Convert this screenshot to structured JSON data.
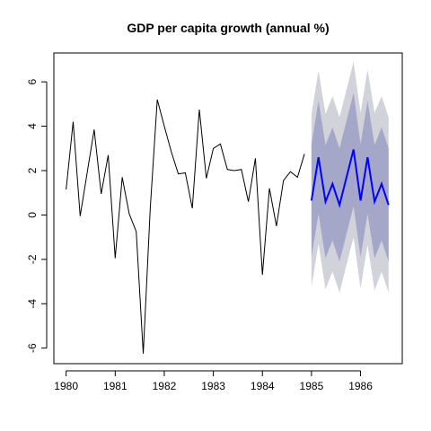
{
  "chart_data": {
    "type": "line",
    "title": "GDP per capita growth (annual %)",
    "xlabel": "",
    "ylabel": "",
    "xlim": [
      1979.75,
      1986.85
    ],
    "ylim": [
      -6.7,
      7.3
    ],
    "x_ticks": [
      1980,
      1981,
      1982,
      1983,
      1984,
      1985,
      1986
    ],
    "x_tick_labels": [
      "1980",
      "1981",
      "1982",
      "1983",
      "1984",
      "1985",
      "1986"
    ],
    "y_ticks": [
      -6,
      -4,
      -2,
      0,
      2,
      4,
      6
    ],
    "y_tick_labels": [
      "-6",
      "-4",
      "-2",
      "0",
      "2",
      "4",
      "6"
    ],
    "grid": false,
    "series": [
      {
        "role": "observed",
        "color": "#000000",
        "x": [
          1980.0,
          1980.1429,
          1980.2857,
          1980.4286,
          1980.5714,
          1980.7143,
          1980.8571,
          1981.0,
          1981.1429,
          1981.2857,
          1981.4286,
          1981.5714,
          1981.7143,
          1981.8571,
          1982.0,
          1982.1429,
          1982.2857,
          1982.4286,
          1982.5714,
          1982.7143,
          1982.8571,
          1983.0,
          1983.1429,
          1983.2857,
          1983.4286,
          1983.5714,
          1983.7143,
          1983.8571,
          1984.0,
          1984.1429,
          1984.2857,
          1984.4286,
          1984.5714,
          1984.7143,
          1984.8571
        ],
        "values": [
          1.15,
          4.2,
          -0.05,
          1.9,
          3.85,
          0.95,
          2.7,
          -1.95,
          1.7,
          0.05,
          -0.75,
          -6.25,
          0.3,
          5.2,
          4.0,
          2.85,
          1.85,
          1.9,
          0.3,
          4.75,
          1.65,
          3.0,
          3.2,
          2.05,
          2.0,
          2.05,
          0.6,
          2.55,
          -2.7,
          1.2,
          -0.5,
          1.55,
          1.95,
          1.7,
          2.75
        ]
      },
      {
        "role": "forecast",
        "color": "#0000ff",
        "x": [
          1985.0,
          1985.1429,
          1985.2857,
          1985.4286,
          1985.5714,
          1985.7143,
          1985.8571,
          1986.0,
          1986.1429,
          1986.2857,
          1986.4286,
          1986.5714
        ],
        "values": [
          0.65,
          2.6,
          0.6,
          1.4,
          0.45,
          1.7,
          2.95,
          0.65,
          2.6,
          0.6,
          1.4,
          0.45
        ]
      }
    ],
    "bands": [
      {
        "level": "95",
        "color": "#d2d2da",
        "lower": [
          -3.25,
          -1.3,
          -3.35,
          -2.55,
          -3.5,
          -2.25,
          -1.0,
          -3.3,
          -1.35,
          -3.4,
          -2.55,
          -3.5
        ],
        "upper": [
          4.55,
          6.5,
          4.55,
          5.35,
          4.4,
          5.65,
          6.9,
          4.6,
          6.55,
          4.6,
          5.35,
          4.4
        ]
      },
      {
        "level": "80",
        "color": "#a5a7c8",
        "lower": [
          -1.9,
          0.05,
          -1.95,
          -1.15,
          -2.1,
          -0.85,
          0.4,
          -1.9,
          0.05,
          -1.95,
          -1.15,
          -2.1
        ],
        "upper": [
          3.2,
          5.15,
          3.15,
          3.95,
          3.0,
          4.25,
          5.5,
          3.2,
          5.15,
          3.15,
          3.95,
          3.0
        ]
      }
    ]
  }
}
